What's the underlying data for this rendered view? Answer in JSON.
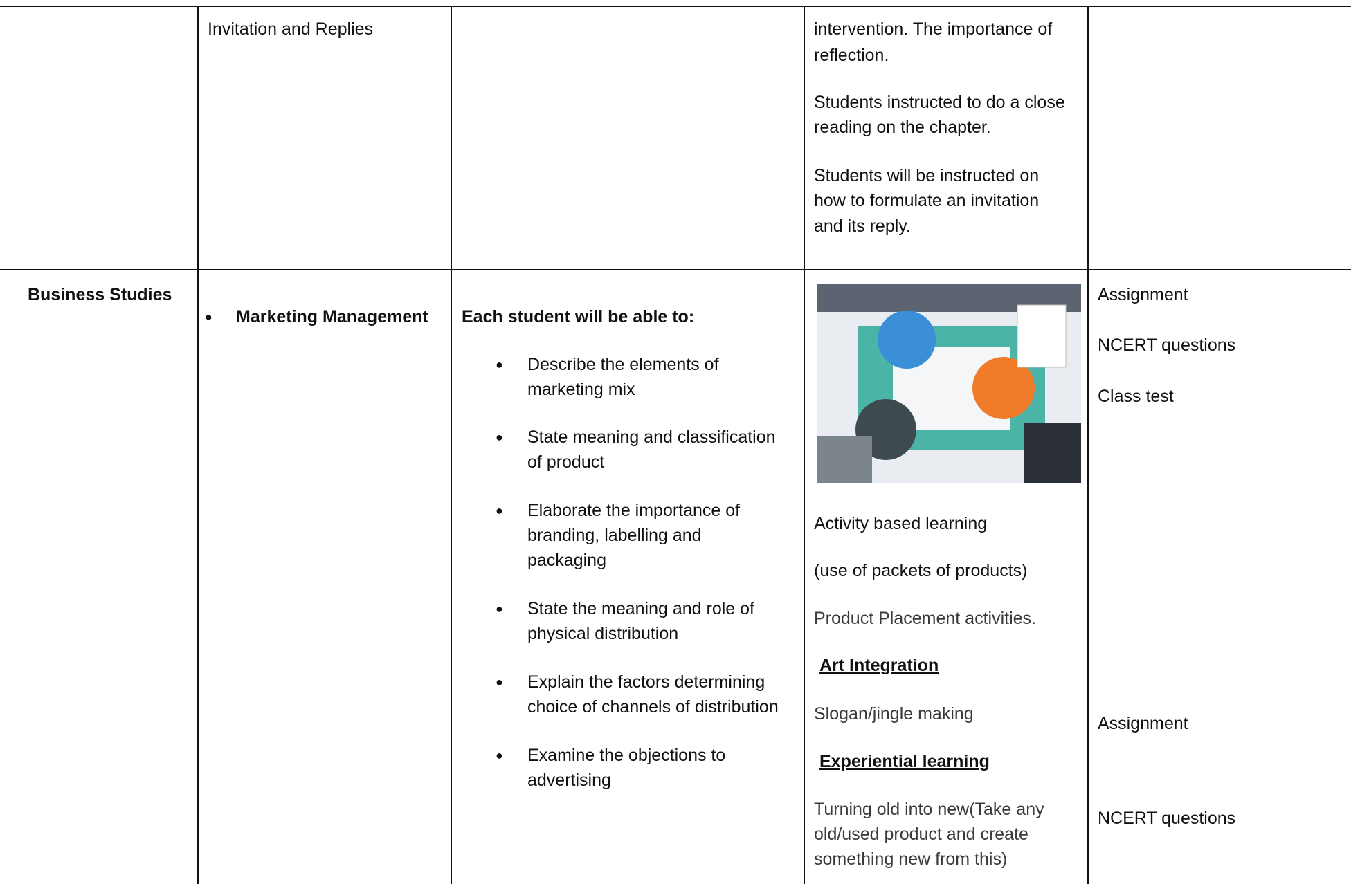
{
  "table": {
    "rows": [
      {
        "cells": [
          {
            "text": ""
          },
          {
            "text": "Invitation and Replies"
          },
          {
            "text": ""
          },
          {
            "paragraphs": [
              [
                "intervention. The importance of",
                "reflection."
              ],
              [
                "Students instructed to do a close",
                "reading on the chapter."
              ],
              [
                "Students will be instructed on",
                "how to formulate an invitation",
                "and its reply."
              ]
            ]
          },
          {
            "text": ""
          }
        ]
      },
      {
        "cells": [
          {
            "text": "Business Studies"
          },
          {
            "bullet": "Marketing Management"
          },
          {
            "heading": "Each student will be able to:",
            "items": [
              [
                "Describe the elements of",
                "marketing mix"
              ],
              [
                "State meaning and classification",
                "of product"
              ],
              [
                "Elaborate the importance of",
                "branding, labelling and",
                "packaging"
              ],
              [
                "State the meaning and role of",
                "physical distribution"
              ],
              [
                "Explain the factors determining",
                "choice of channels of distribution"
              ],
              [
                "Examine the objections to",
                "advertising"
              ]
            ]
          },
          {
            "paragraphs": [
              "Activity based learning",
              "(use of packets of products)",
              "Product Placement activities.",
              "Art Integration",
              "Slogan/jingle making",
              "Experiential learning",
              [
                "Turning old into new(Take any",
                "old/used product and create",
                "something new from this)"
              ]
            ]
          },
          {
            "paragraphs": [
              "Assignment",
              "NCERT questions",
              "Class test",
              "Assignment",
              "NCERT questions"
            ]
          }
        ]
      }
    ]
  }
}
